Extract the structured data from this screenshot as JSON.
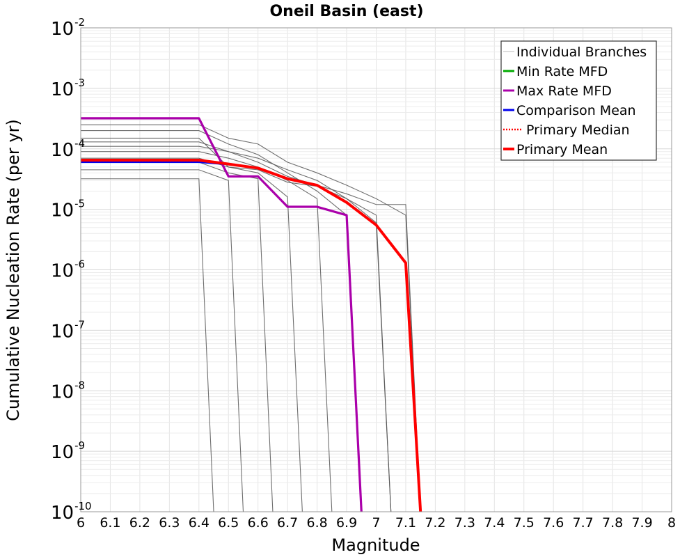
{
  "chart_data": {
    "type": "line",
    "title": "Oneil Basin (east)",
    "xlabel": "Magnitude",
    "ylabel": "Cumulative Nucleation Rate (per yr)",
    "xlim": [
      6,
      8
    ],
    "ylim": [
      1e-10,
      0.01
    ],
    "yscale": "log",
    "grid": true,
    "legend_position": "top-right",
    "x_ticks": [
      "6",
      "6.1",
      "6.2",
      "6.3",
      "6.4",
      "6.5",
      "6.6",
      "6.7",
      "6.8",
      "6.9",
      "7",
      "7.1",
      "7.2",
      "7.3",
      "7.4",
      "7.5",
      "7.6",
      "7.7",
      "7.8",
      "7.9",
      "8"
    ],
    "y_ticks": [
      {
        "base": "10",
        "exp": "-10",
        "value": 1e-10
      },
      {
        "base": "10",
        "exp": "-9",
        "value": 1e-09
      },
      {
        "base": "10",
        "exp": "-8",
        "value": 1e-08
      },
      {
        "base": "10",
        "exp": "-7",
        "value": 1e-07
      },
      {
        "base": "10",
        "exp": "-6",
        "value": 1e-06
      },
      {
        "base": "10",
        "exp": "-5",
        "value": 1e-05
      },
      {
        "base": "10",
        "exp": "-4",
        "value": 0.0001
      },
      {
        "base": "10",
        "exp": "-3",
        "value": 0.001
      },
      {
        "base": "10",
        "exp": "-2",
        "value": 0.01
      }
    ],
    "series": [
      {
        "name": "Individual Branches",
        "color": "#555555",
        "style": "thin",
        "branches": [
          {
            "x": [
              6.0,
              6.4,
              6.45
            ],
            "y": [
              3.2e-05,
              3.2e-05,
              1e-10
            ]
          },
          {
            "x": [
              6.0,
              6.4,
              6.5,
              6.55
            ],
            "y": [
              4.5e-05,
              4.5e-05,
              3e-05,
              1e-10
            ]
          },
          {
            "x": [
              6.0,
              6.4,
              6.5,
              6.6,
              6.65
            ],
            "y": [
              6e-05,
              6e-05,
              4e-05,
              3.2e-05,
              1e-10
            ]
          },
          {
            "x": [
              6.0,
              6.4,
              6.5,
              6.6,
              6.7,
              6.75
            ],
            "y": [
              0.00015,
              0.00015,
              5e-05,
              4e-05,
              1.6e-05,
              1e-10
            ]
          },
          {
            "x": [
              6.0,
              6.4,
              6.5,
              6.6,
              6.7,
              6.8,
              6.85
            ],
            "y": [
              9e-05,
              9e-05,
              7e-05,
              5e-05,
              3e-05,
              1.5e-05,
              1e-10
            ]
          },
          {
            "x": [
              6.0,
              6.4,
              6.5,
              6.6,
              6.7,
              6.8,
              6.9,
              6.95
            ],
            "y": [
              0.0002,
              0.0002,
              0.00012,
              8e-05,
              4e-05,
              2e-05,
              8e-06,
              1e-10
            ]
          },
          {
            "x": [
              6.0,
              6.4,
              6.5,
              6.6,
              6.7,
              6.8,
              6.9,
              7.0,
              7.05
            ],
            "y": [
              0.00011,
              0.00011,
              9e-05,
              7e-05,
              4.5e-05,
              3e-05,
              1.5e-05,
              6e-06,
              1e-10
            ]
          },
          {
            "x": [
              6.0,
              6.4,
              6.5,
              6.6,
              6.7,
              6.8,
              6.9,
              7.0,
              7.1,
              7.15
            ],
            "y": [
              0.00025,
              0.00025,
              0.00015,
              0.00012,
              6e-05,
              4e-05,
              2.5e-05,
              1.5e-05,
              8e-06,
              1e-10
            ]
          },
          {
            "x": [
              6.0,
              6.4,
              6.5,
              6.6,
              6.7,
              6.8,
              6.9,
              7.0,
              7.1,
              7.15
            ],
            "y": [
              0.00013,
              0.00013,
              9e-05,
              6e-05,
              3.5e-05,
              2.5e-05,
              1.8e-05,
              1.2e-05,
              1.2e-05,
              1e-10
            ]
          },
          {
            "x": [
              6.0,
              6.4,
              6.5,
              6.6,
              6.7,
              6.8,
              6.9,
              7.0,
              7.05
            ],
            "y": [
              7e-05,
              7e-05,
              5e-05,
              4.5e-05,
              2.8e-05,
              2.4e-05,
              1.5e-05,
              8e-06,
              1e-10
            ]
          }
        ]
      },
      {
        "name": "Min Rate MFD",
        "color": "#00aa00",
        "x": [],
        "y": []
      },
      {
        "name": "Max Rate MFD",
        "color": "#aa00aa",
        "x": [
          6.0,
          6.4,
          6.5,
          6.6,
          6.7,
          6.8,
          6.9,
          6.95
        ],
        "y": [
          0.00032,
          0.00032,
          3.5e-05,
          3.5e-05,
          1.1e-05,
          1.1e-05,
          8e-06,
          1e-10
        ]
      },
      {
        "name": "Comparison Mean",
        "color": "#0000ee",
        "x": [
          6.0,
          6.4,
          6.5,
          6.6,
          6.7,
          6.8,
          6.9,
          7.0,
          7.1,
          7.15
        ],
        "y": [
          6e-05,
          6e-05,
          5.5e-05,
          4.8e-05,
          3.2e-05,
          2.5e-05,
          1.3e-05,
          5.5e-06,
          1.3e-06,
          1e-10
        ]
      },
      {
        "name": "Primary Median",
        "color": "#ff0000",
        "style": "dotted",
        "x": [
          6.0,
          6.4,
          6.5,
          6.6,
          6.7,
          6.8,
          6.9,
          7.0,
          7.1,
          7.15
        ],
        "y": [
          6.3e-05,
          6.3e-05,
          5.5e-05,
          4.8e-05,
          3.2e-05,
          2.5e-05,
          1.3e-05,
          5.5e-06,
          1.3e-06,
          1e-10
        ]
      },
      {
        "name": "Primary Mean",
        "color": "#ff0000",
        "x": [
          6.0,
          6.4,
          6.5,
          6.6,
          6.7,
          6.8,
          6.9,
          7.0,
          7.1,
          7.15
        ],
        "y": [
          6.5e-05,
          6.5e-05,
          5.6e-05,
          4.8e-05,
          3.2e-05,
          2.5e-05,
          1.3e-05,
          5.5e-06,
          1.3e-06,
          1e-10
        ]
      }
    ]
  }
}
